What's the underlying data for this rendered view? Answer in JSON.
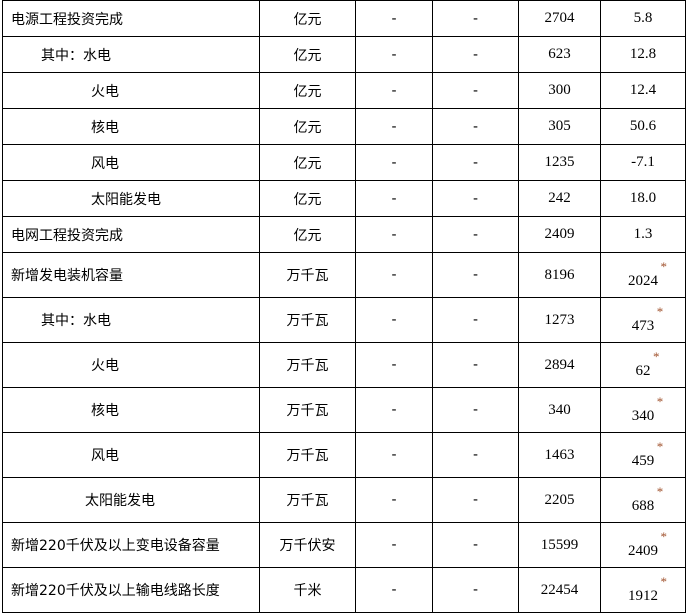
{
  "accent": {
    "asterisk": "#a0522d"
  },
  "rows": [
    {
      "name": "电源工程投资完成",
      "unit": "亿元",
      "c3": "-",
      "c4": "-",
      "value": "2704",
      "growth": "5.8",
      "star": ""
    },
    {
      "name": "其中：水电",
      "unit": "亿元",
      "c3": "-",
      "c4": "-",
      "value": "623",
      "growth": "12.8",
      "star": ""
    },
    {
      "name": "火电",
      "unit": "亿元",
      "c3": "-",
      "c4": "-",
      "value": "300",
      "growth": "12.4",
      "star": ""
    },
    {
      "name": "核电",
      "unit": "亿元",
      "c3": "-",
      "c4": "-",
      "value": "305",
      "growth": "50.6",
      "star": ""
    },
    {
      "name": "风电",
      "unit": "亿元",
      "c3": "-",
      "c4": "-",
      "value": "1235",
      "growth": "-7.1",
      "star": ""
    },
    {
      "name": "太阳能发电",
      "unit": "亿元",
      "c3": "-",
      "c4": "-",
      "value": "242",
      "growth": "18.0",
      "star": ""
    },
    {
      "name": "电网工程投资完成",
      "unit": "亿元",
      "c3": "-",
      "c4": "-",
      "value": "2409",
      "growth": "1.3",
      "star": ""
    },
    {
      "name": "新增发电装机容量",
      "unit": "万千瓦",
      "c3": "-",
      "c4": "-",
      "value": "8196",
      "growth": "2024",
      "star": "*"
    },
    {
      "name": "其中：水电",
      "unit": "万千瓦",
      "c3": "-",
      "c4": "-",
      "value": "1273",
      "growth": "473",
      "star": "*"
    },
    {
      "name": "火电",
      "unit": "万千瓦",
      "c3": "-",
      "c4": "-",
      "value": "2894",
      "growth": "62",
      "star": "*"
    },
    {
      "name": "核电",
      "unit": "万千瓦",
      "c3": "-",
      "c4": "-",
      "value": "340",
      "growth": "340",
      "star": "*"
    },
    {
      "name": "风电",
      "unit": "万千瓦",
      "c3": "-",
      "c4": "-",
      "value": "1463",
      "growth": "459",
      "star": "*"
    },
    {
      "name": "太阳能发电",
      "unit": "万千瓦",
      "c3": "-",
      "c4": "-",
      "value": "2205",
      "growth": "688",
      "star": "*"
    },
    {
      "name": "新增220千伏及以上变电设备容量",
      "unit": "万千伏安",
      "c3": "-",
      "c4": "-",
      "value": "15599",
      "growth": "2409",
      "star": "*"
    },
    {
      "name": "新增220千伏及以上输电线路长度",
      "unit": "千米",
      "c3": "-",
      "c4": "-",
      "value": "22454",
      "growth": "1912",
      "star": "*"
    }
  ]
}
